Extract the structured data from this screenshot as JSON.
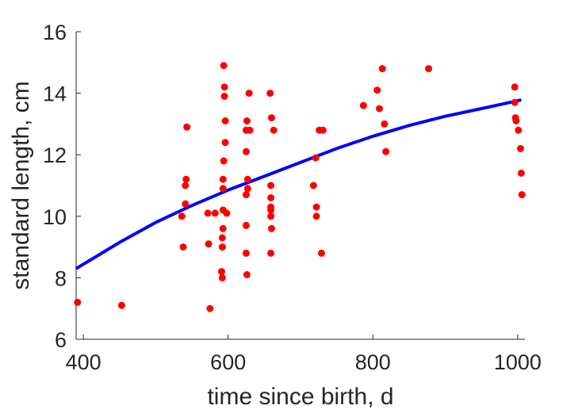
{
  "chart_data": {
    "type": "scatter",
    "title": "",
    "xlabel": "time since birth, d",
    "ylabel": "standard length, cm",
    "xlim": [
      390,
      1010
    ],
    "ylim": [
      6,
      16
    ],
    "xticks": [
      400,
      600,
      800,
      1000
    ],
    "yticks": [
      6,
      8,
      10,
      12,
      14,
      16
    ],
    "grid": false,
    "colors": {
      "points": "#ff0000",
      "fit": "#0000ff",
      "axes": "#262626"
    },
    "series": [
      {
        "kind": "points",
        "x": [
          392,
          453,
          536,
          538,
          541,
          541,
          542,
          543,
          572,
          573,
          575,
          582,
          591,
          592,
          592,
          592,
          593,
          593,
          593,
          593,
          594,
          594,
          595,
          595,
          596,
          596,
          598,
          625,
          625,
          625,
          625,
          625,
          626,
          626,
          627,
          627,
          629,
          630,
          658,
          659,
          659,
          659,
          659,
          659,
          659,
          660,
          660,
          663,
          718,
          721,
          722,
          722,
          726,
          729,
          731,
          787,
          806,
          809,
          813,
          816,
          818,
          877,
          996,
          996,
          997,
          998,
          1001,
          1004,
          1005,
          1006
        ],
        "y": [
          7.2,
          7.1,
          10.0,
          9.0,
          10.4,
          11.0,
          11.2,
          12.9,
          10.1,
          9.1,
          7.0,
          10.1,
          8.2,
          8.0,
          9.0,
          9.3,
          9.6,
          10.2,
          10.9,
          11.2,
          11.8,
          14.9,
          13.9,
          14.2,
          12.4,
          13.1,
          10.1,
          8.8,
          9.7,
          10.7,
          12.1,
          12.8,
          13.1,
          8.1,
          11.2,
          10.9,
          14.0,
          12.8,
          14.0,
          10.0,
          10.2,
          10.3,
          10.6,
          11.0,
          8.8,
          9.6,
          13.2,
          12.8,
          11.0,
          11.9,
          10.3,
          10.0,
          12.8,
          8.8,
          12.8,
          13.6,
          14.1,
          13.5,
          14.8,
          13.0,
          12.1,
          14.8,
          14.2,
          13.7,
          13.2,
          13.1,
          12.8,
          12.2,
          11.4,
          10.7
        ]
      },
      {
        "kind": "line",
        "x": [
          390,
          450,
          500,
          550,
          600,
          650,
          700,
          750,
          800,
          850,
          900,
          950,
          1005
        ],
        "y": [
          8.3,
          9.15,
          9.8,
          10.35,
          10.85,
          11.3,
          11.75,
          12.2,
          12.6,
          12.95,
          13.25,
          13.5,
          13.78
        ]
      }
    ]
  }
}
